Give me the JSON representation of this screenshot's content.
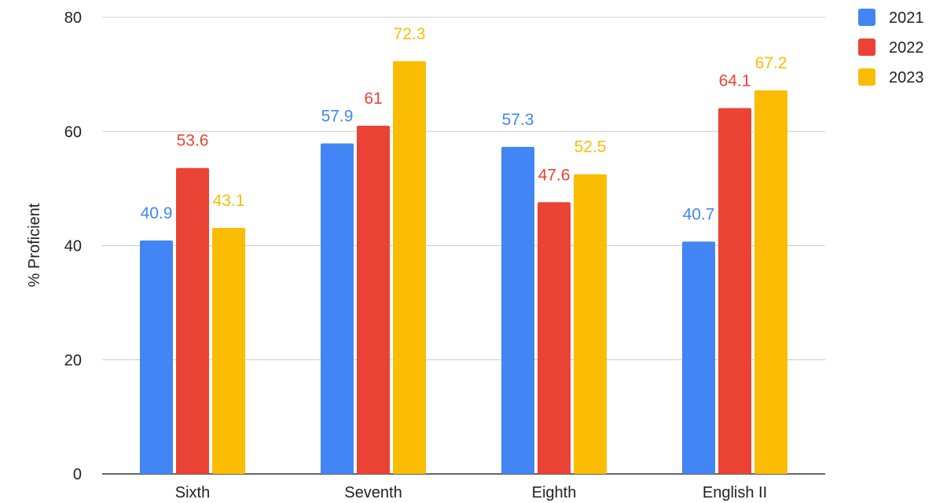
{
  "chart_data": {
    "type": "bar",
    "title": "",
    "xlabel": "",
    "ylabel": "% Proficient",
    "ylim": [
      0,
      80
    ],
    "yticks": [
      0,
      20,
      40,
      60,
      80
    ],
    "grid": true,
    "legend_position": "top-right",
    "categories": [
      "Sixth",
      "Seventh",
      "Eighth",
      "English II"
    ],
    "series": [
      {
        "name": "2021",
        "color": "#4285F4",
        "values": [
          40.9,
          57.9,
          57.3,
          40.7
        ]
      },
      {
        "name": "2022",
        "color": "#EA4335",
        "values": [
          53.6,
          61,
          47.6,
          64.1
        ]
      },
      {
        "name": "2023",
        "color": "#FBBC04",
        "values": [
          43.1,
          72.3,
          52.5,
          67.2
        ]
      }
    ]
  }
}
